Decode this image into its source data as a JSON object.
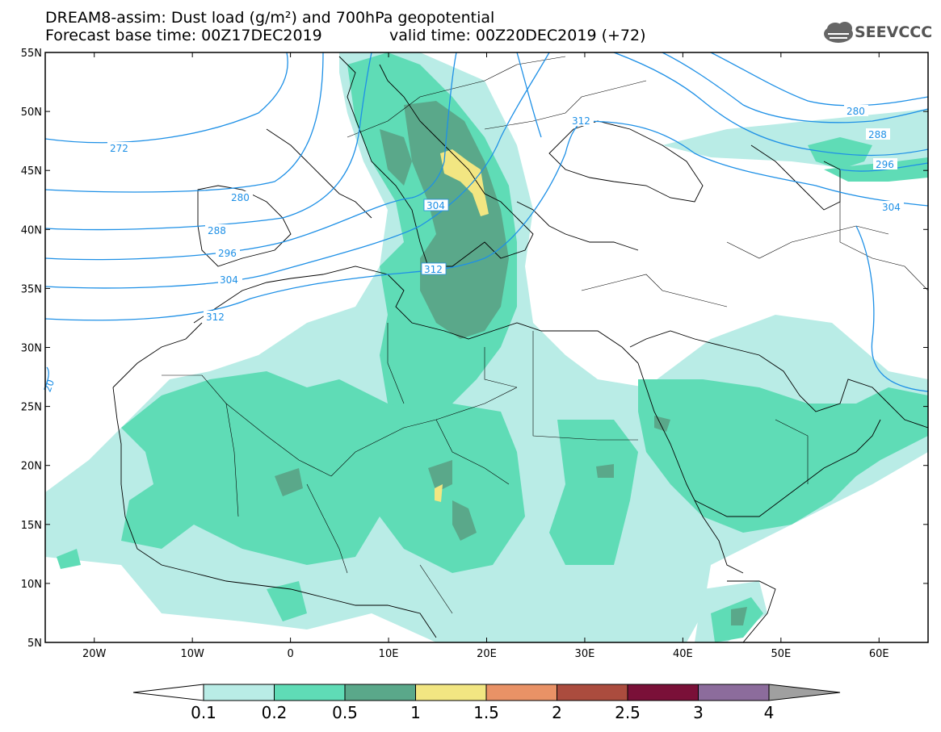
{
  "header": {
    "title_line1": "DREAM8-assim: Dust load (g/m²) and 700hPa geopotential",
    "title_line2": "Forecast base time: 00Z17DEC2019",
    "valid_time": "valid time: 00Z20DEC2019 (+72)",
    "logo_text": "SEEVCCC"
  },
  "map": {
    "lat_labels": [
      "55N",
      "50N",
      "45N",
      "40N",
      "35N",
      "30N",
      "25N",
      "20N",
      "15N",
      "10N",
      "5N"
    ],
    "lon_labels": [
      "20W",
      "10W",
      "0",
      "10E",
      "20E",
      "30E",
      "40E",
      "50E",
      "60E"
    ],
    "contour_labels": [
      "272",
      "280",
      "288",
      "296",
      "304",
      "312",
      "304",
      "312",
      "312",
      "280",
      "288",
      "296",
      "304",
      "20"
    ],
    "contour_color": "#1e90e6",
    "coast_color": "#000000"
  },
  "legend": {
    "ticks": [
      "0.1",
      "0.2",
      "0.5",
      "1",
      "1.5",
      "2",
      "2.5",
      "3",
      "4"
    ],
    "colors": [
      "#b9ece6",
      "#5fdcb6",
      "#5aa88a",
      "#f2e682",
      "#e99266",
      "#ab4c3e",
      "#7a1038",
      "#8c6c9c"
    ],
    "low_color": "#ffffff",
    "high_color": "#a0a0a0"
  }
}
